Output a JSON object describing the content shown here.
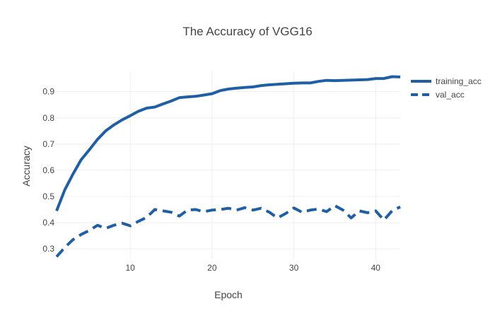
{
  "chart_data": {
    "type": "line",
    "title": "The Accuracy of VGG16",
    "xlabel": "Epoch",
    "ylabel": "Accuracy",
    "xlim": [
      1,
      43
    ],
    "ylim": [
      0.26,
      0.98
    ],
    "xticks": [
      10,
      20,
      30,
      40
    ],
    "yticks": [
      0.3,
      0.4,
      0.5,
      0.6,
      0.7,
      0.8,
      0.9
    ],
    "grid": true,
    "legend_position": "top-right",
    "x": [
      1,
      2,
      3,
      4,
      5,
      6,
      7,
      8,
      9,
      10,
      11,
      12,
      13,
      14,
      15,
      16,
      17,
      18,
      19,
      20,
      21,
      22,
      23,
      24,
      25,
      26,
      27,
      28,
      29,
      30,
      31,
      32,
      33,
      34,
      35,
      36,
      37,
      38,
      39,
      40,
      41,
      42,
      43
    ],
    "series": [
      {
        "name": "training_acc",
        "style": "solid",
        "color": "#1f5fa6",
        "values": [
          0.445,
          0.525,
          0.585,
          0.64,
          0.678,
          0.718,
          0.75,
          0.773,
          0.792,
          0.808,
          0.825,
          0.837,
          0.841,
          0.853,
          0.864,
          0.877,
          0.88,
          0.882,
          0.887,
          0.892,
          0.904,
          0.91,
          0.913,
          0.916,
          0.918,
          0.923,
          0.926,
          0.928,
          0.93,
          0.932,
          0.933,
          0.933,
          0.939,
          0.943,
          0.942,
          0.943,
          0.944,
          0.945,
          0.946,
          0.95,
          0.95,
          0.957,
          0.956
        ]
      },
      {
        "name": "val_acc",
        "style": "dash",
        "color": "#1f5fa6",
        "values": [
          0.27,
          0.305,
          0.335,
          0.355,
          0.37,
          0.39,
          0.378,
          0.39,
          0.398,
          0.388,
          0.405,
          0.42,
          0.45,
          0.445,
          0.44,
          0.425,
          0.448,
          0.45,
          0.442,
          0.448,
          0.45,
          0.455,
          0.448,
          0.457,
          0.448,
          0.455,
          0.44,
          0.418,
          0.435,
          0.456,
          0.44,
          0.448,
          0.452,
          0.442,
          0.465,
          0.448,
          0.418,
          0.445,
          0.438,
          0.445,
          0.41,
          0.445,
          0.46
        ]
      }
    ]
  }
}
